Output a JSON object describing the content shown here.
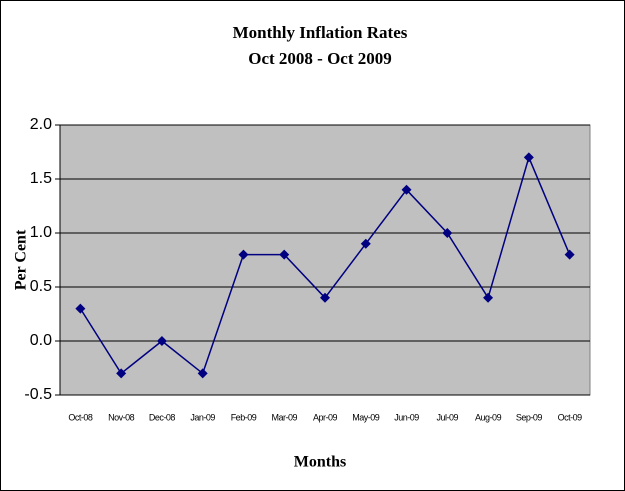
{
  "chart_data": {
    "type": "line",
    "title": "Monthly Inflation Rates",
    "subtitle": "Oct 2008 - Oct 2009",
    "x_label": "Months",
    "y_label": "Per Cent",
    "categories": [
      "Oct-08",
      "Nov-08",
      "Dec-08",
      "Jan-09",
      "Feb-09",
      "Mar-09",
      "Apr-09",
      "May-09",
      "Jun-09",
      "Jul-09",
      "Aug-09",
      "Sep-09",
      "Oct-09"
    ],
    "values": [
      0.3,
      -0.3,
      0,
      -0.3,
      0.8,
      0.8,
      0.4,
      0.9,
      1.4,
      1.0,
      0.4,
      1.7,
      0.8
    ],
    "color": "#000080",
    "ylim": [
      -0.5,
      2.0
    ],
    "yticks": [
      -0.5,
      {
        "value": 0,
        "label": "0.0"
      },
      0.5,
      {
        "value": 1,
        "label": "1.0"
      },
      1.5,
      {
        "value": 2,
        "label": "2.0"
      }
    ],
    "grid": true
  }
}
